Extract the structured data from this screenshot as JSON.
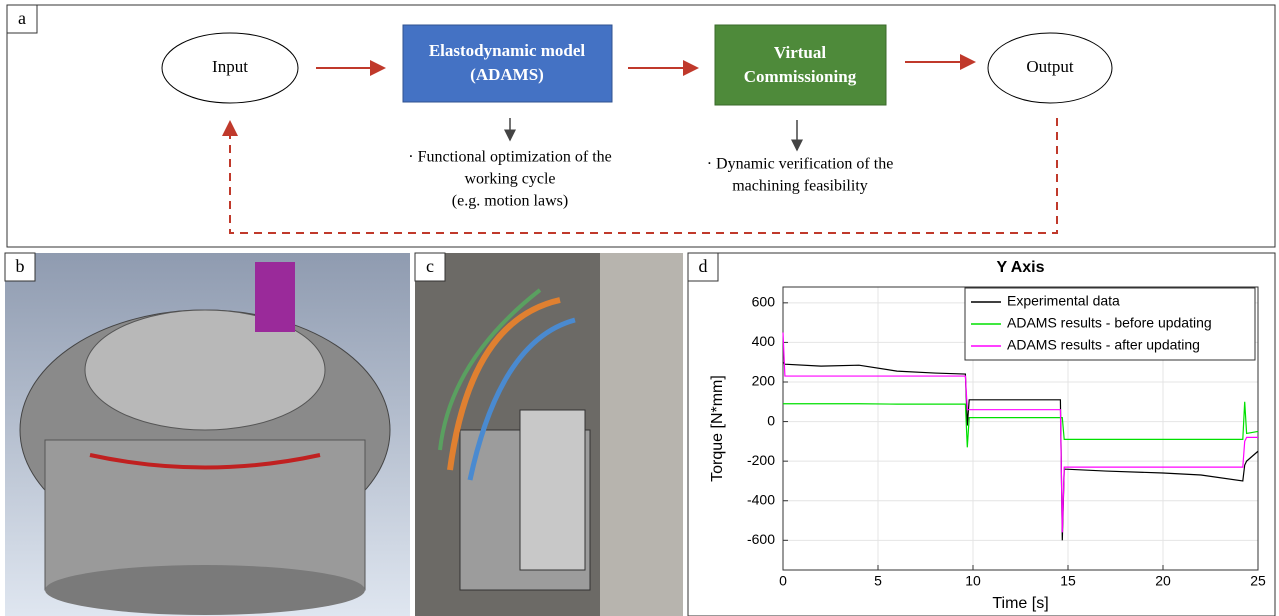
{
  "panels": {
    "a": "a",
    "b": "b",
    "c": "c",
    "d": "d"
  },
  "diagram": {
    "nodes": [
      {
        "label": [
          "Input"
        ]
      },
      {
        "label": [
          "Elastodynamic model",
          "(ADAMS)"
        ]
      },
      {
        "label": [
          "Virtual",
          "Commissioning"
        ]
      },
      {
        "label": [
          "Output"
        ]
      }
    ],
    "notes": [
      [
        "· Functional optimization of the",
        "working cycle",
        "(e.g. motion laws)"
      ],
      [
        "· Dynamic verification of the",
        "machining feasibility"
      ]
    ]
  },
  "chart_data": {
    "type": "line",
    "title": "Y Axis",
    "xlabel": "Time [s]",
    "ylabel": "Torque [N*mm]",
    "x": [
      0,
      0.1,
      2,
      4,
      6,
      8,
      9.6,
      9.7,
      9.8,
      12,
      14.6,
      14.7,
      14.8,
      17,
      20,
      22,
      24.2,
      24.3,
      24.4,
      25
    ],
    "series": [
      {
        "name": "Experimental data",
        "color": "#000000",
        "values": [
          300,
          290,
          280,
          285,
          255,
          245,
          240,
          -20,
          110,
          110,
          110,
          -600,
          -240,
          -250,
          -260,
          -270,
          -300,
          -220,
          -200,
          -150
        ]
      },
      {
        "name": "ADAMS results - before updating",
        "color": "#00e000",
        "values": [
          90,
          90,
          90,
          90,
          88,
          88,
          88,
          -130,
          20,
          20,
          20,
          20,
          -90,
          -90,
          -90,
          -90,
          -90,
          100,
          -60,
          -50
        ]
      },
      {
        "name": "ADAMS results - after updating",
        "color": "#ff00ff",
        "values": [
          450,
          230,
          230,
          230,
          230,
          230,
          230,
          60,
          60,
          60,
          60,
          -560,
          -230,
          -230,
          -230,
          -230,
          -230,
          -100,
          -80,
          -80
        ]
      }
    ],
    "xlim": [
      0,
      25
    ],
    "xticks": [
      0,
      5,
      10,
      15,
      20,
      25
    ],
    "ylim": [
      -750,
      680
    ],
    "yticks": [
      -600,
      -400,
      -200,
      0,
      200,
      400,
      600
    ],
    "grid": true,
    "legend": "upper right"
  }
}
